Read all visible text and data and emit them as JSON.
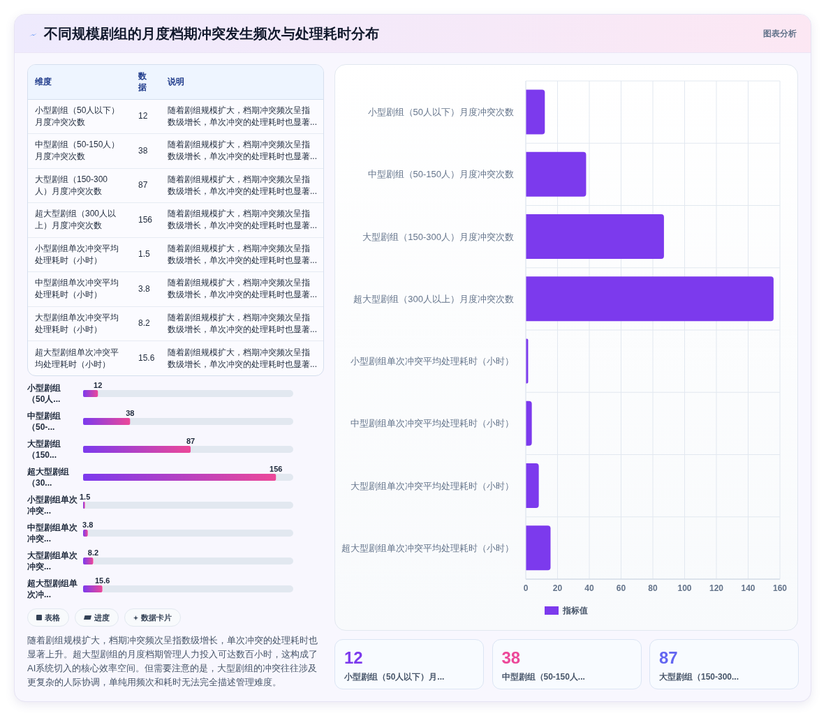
{
  "chart_data": [
    {
      "type": "other",
      "title": "不同规模剧组的月度档期冲突发生频次与处理耗时分布",
      "annotations": [
        "图表分析"
      ],
      "categories": [
        "维度",
        "数据",
        "说明"
      ],
      "cell_labels": [
        [
          "小型剧组（50人以下）月度冲突次数",
          "12",
          "随着剧组规模扩大，档期冲突频次呈指数级增长，单次冲突的处理耗时也显著..."
        ],
        [
          "中型剧组（50-150人）月度冲突次数",
          "38",
          "随着剧组规模扩大，档期冲突频次呈指数级增长，单次冲突的处理耗时也显著..."
        ],
        [
          "大型剧组（150-300人）月度冲突次数",
          "87",
          "随着剧组规模扩大，档期冲突频次呈指数级增长，单次冲突的处理耗时也显著..."
        ],
        [
          "超大型剧组（300人以上）月度冲突次数",
          "156",
          "随着剧组规模扩大，档期冲突频次呈指数级增长，单次冲突的处理耗时也显著..."
        ],
        [
          "小型剧组单次冲突平均处理耗时（小时）",
          "1.5",
          "随着剧组规模扩大，档期冲突频次呈指数级增长，单次冲突的处理耗时也显著..."
        ],
        [
          "中型剧组单次冲突平均处理耗时（小时）",
          "3.8",
          "随着剧组规模扩大，档期冲突频次呈指数级增长，单次冲突的处理耗时也显著..."
        ],
        [
          "大型剧组单次冲突平均处理耗时（小时）",
          "8.2",
          "随着剧组规模扩大，档期冲突频次呈指数级增长，单次冲突的处理耗时也显著..."
        ],
        [
          "超大型剧组单次冲突平均处理耗时（小时）",
          "15.6",
          "随着剧组规模扩大，档期冲突频次呈指数级增长，单次冲突的处理耗时也显著..."
        ]
      ]
    },
    {
      "type": "bar",
      "orientation": "horizontal",
      "categories": [
        "小型剧组（50人...",
        "中型剧组（50-...",
        "大型剧组（150...",
        "超大型剧组（30...",
        "小型剧组单次冲突...",
        "中型剧组单次冲突...",
        "大型剧组单次冲突...",
        "超大型剧组单次冲..."
      ],
      "values": [
        12,
        38,
        87,
        156,
        1.5,
        3.8,
        8.2,
        15.6
      ],
      "color": "#7c3aed",
      "xlim": [
        0,
        170
      ],
      "data_labels": true,
      "tick_labels": "y",
      "annotations": [
        "表格",
        "进度",
        "数据卡片",
        "随着剧组规模扩大，档期冲突频次呈指数级增长，单次冲突的处理耗时也显著上升。超大型剧组的月度档期管理人力投入可达数百小时，这构成了AI系统切入的核心效率空间。但需要注意的是，大型剧组的冲突往往涉及更复杂的人际协调，单纯用频次和耗时无法完全描述管理难度。"
      ]
    },
    {
      "type": "bar",
      "orientation": "horizontal",
      "categories": [
        "小型剧组（50人以下）月度冲突次数",
        "中型剧组（50-150人）月度冲突次数",
        "大型剧组（150-300人）月度冲突次数",
        "超大型剧组（300人以上）月度冲突次数",
        "小型剧组单次冲突平均处理耗时（小时）",
        "中型剧组单次冲突平均处理耗时（小时）",
        "大型剧组单次冲突平均处理耗时（小时）",
        "超大型剧组单次冲突平均处理耗时（小时）"
      ],
      "series": [
        {
          "name": "指标值",
          "color": "#7c3aed",
          "values": [
            12,
            38,
            87,
            156,
            1.5,
            3.8,
            8.2,
            15.6
          ]
        }
      ],
      "xlim": [
        0,
        160
      ],
      "xticks": [
        0,
        20,
        40,
        60,
        80,
        100,
        120,
        140,
        160
      ],
      "grid": true,
      "legend": "bottom"
    },
    {
      "type": "other",
      "categories": [
        "小型剧组（50人以下）月...",
        "中型剧组（50-150人...",
        "大型剧组（150-300..."
      ],
      "values": [
        12,
        38,
        87
      ],
      "data_labels": true
    }
  ]
}
